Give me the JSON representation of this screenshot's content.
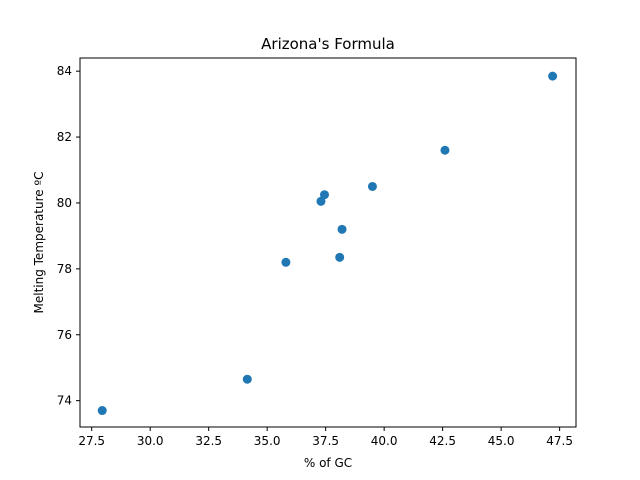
{
  "chart_data": {
    "type": "scatter",
    "title": "Arizona's Formula",
    "xlabel": "% of GC",
    "ylabel": "Melting Temperature ºC",
    "xlim": [
      27.0,
      48.2
    ],
    "ylim": [
      73.2,
      84.4
    ],
    "xticks": [
      27.5,
      30.0,
      32.5,
      35.0,
      37.5,
      40.0,
      42.5,
      45.0,
      47.5
    ],
    "yticks": [
      74,
      76,
      78,
      80,
      82,
      84
    ],
    "grid": false,
    "color": "#1f77b4",
    "points": [
      {
        "x": 27.95,
        "y": 73.7
      },
      {
        "x": 34.15,
        "y": 74.65
      },
      {
        "x": 35.8,
        "y": 78.2
      },
      {
        "x": 37.3,
        "y": 80.05
      },
      {
        "x": 37.45,
        "y": 80.25
      },
      {
        "x": 38.1,
        "y": 78.35
      },
      {
        "x": 38.2,
        "y": 79.2
      },
      {
        "x": 39.5,
        "y": 80.5
      },
      {
        "x": 42.6,
        "y": 81.6
      },
      {
        "x": 47.2,
        "y": 83.85
      }
    ]
  }
}
